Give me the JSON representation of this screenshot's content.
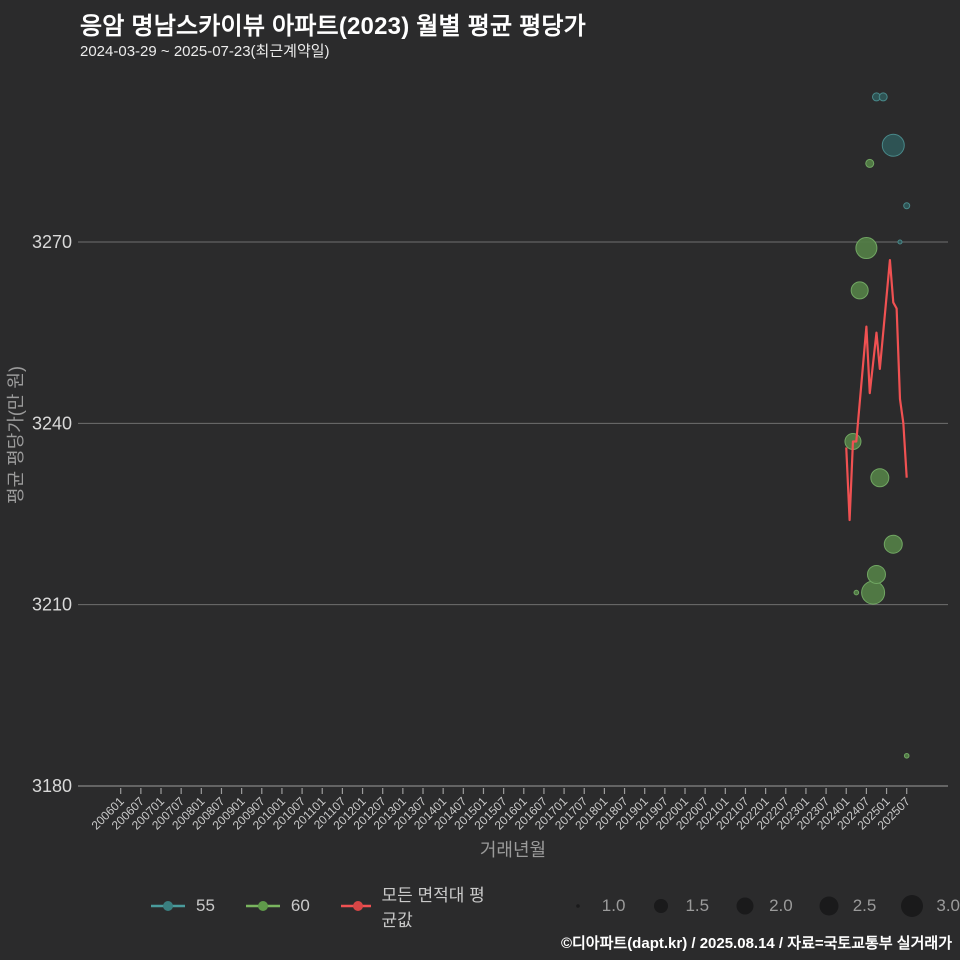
{
  "title": "응암 명남스카이뷰 아파트(2023) 월별 평균 평당가",
  "subtitle": "2024-03-29 ~ 2025-07-23(최근계약일)",
  "footer": "©디아파트(dapt.kr) / 2025.08.14 / 자료=국토교통부 실거래가",
  "colors": {
    "background": "#2b2b2c",
    "grid": "#6f6f6f",
    "axis": "#9c9c9c",
    "y_tick_text": "#d9d9d9",
    "x_tick_text": "#c9c9c9",
    "axis_title": "#9b9b9b",
    "legend_text": "#c9c9c9",
    "size_circle": "#1a1a1b"
  },
  "chart_data": {
    "type": "scatter",
    "title": "응암 명남스카이뷰 아파트(2023) 월별 평균 평당가",
    "subtitle": "2024-03-29 ~ 2025-07-23(최근계약일)",
    "xlabel": "거래년월",
    "ylabel": "평균 평당가(만 원)",
    "ylim": [
      3178,
      3298
    ],
    "grid": true,
    "legend_position": "bottom",
    "y_ticks": [
      3270,
      3240,
      3210,
      3180
    ],
    "x_tick_labels": [
      "200601",
      "200607",
      "200701",
      "200707",
      "200801",
      "200807",
      "200901",
      "200907",
      "201001",
      "201007",
      "201101",
      "201107",
      "201201",
      "201207",
      "201301",
      "201307",
      "201401",
      "201407",
      "201501",
      "201507",
      "201601",
      "201607",
      "201701",
      "201707",
      "201801",
      "201807",
      "201901",
      "201907",
      "202001",
      "202007",
      "202101",
      "202107",
      "202201",
      "202207",
      "202301",
      "202307",
      "202401",
      "202407",
      "202501",
      "202507"
    ],
    "series": [
      {
        "name": "55",
        "legend_color": "#4a9b9c",
        "fill": "#2e5556",
        "stroke": "#49898a",
        "points": [
          {
            "ym": "202410",
            "value": 3294,
            "r": 4
          },
          {
            "ym": "202412",
            "value": 3294,
            "r": 4
          },
          {
            "ym": "202503",
            "value": 3286,
            "r": 11
          },
          {
            "ym": "202505",
            "value": 3270,
            "r": 2
          },
          {
            "ym": "202507",
            "value": 3276,
            "r": 3
          }
        ]
      },
      {
        "name": "60",
        "legend_color": "#6fae54",
        "fill": "#527c46",
        "stroke": "#71a763",
        "points": [
          {
            "ym": "202403",
            "value": 3237,
            "r": 8
          },
          {
            "ym": "202404",
            "value": 3212,
            "r": 2.3
          },
          {
            "ym": "202405",
            "value": 3262,
            "r": 8.5
          },
          {
            "ym": "202407",
            "value": 3269,
            "r": 10.5
          },
          {
            "ym": "202408",
            "value": 3283,
            "r": 4
          },
          {
            "ym": "202409",
            "value": 3212,
            "r": 11.5
          },
          {
            "ym": "202410",
            "value": 3215,
            "r": 9
          },
          {
            "ym": "202411",
            "value": 3231,
            "r": 9
          },
          {
            "ym": "202503",
            "value": 3220,
            "r": 9
          },
          {
            "ym": "202507",
            "value": 3185,
            "r": 2.3
          }
        ]
      }
    ],
    "avg_line": {
      "name": "모든 면적대 평균값",
      "color": "#f05152",
      "points": [
        {
          "ym": "202401",
          "value": 3236
        },
        {
          "ym": "202402",
          "value": 3224
        },
        {
          "ym": "202403",
          "value": 3237
        },
        {
          "ym": "202404",
          "value": 3237
        },
        {
          "ym": "202407",
          "value": 3256
        },
        {
          "ym": "202408",
          "value": 3245
        },
        {
          "ym": "202410",
          "value": 3255
        },
        {
          "ym": "202411",
          "value": 3249
        },
        {
          "ym": "202502",
          "value": 3267
        },
        {
          "ym": "202503",
          "value": 3260
        },
        {
          "ym": "202504",
          "value": 3259
        },
        {
          "ym": "202505",
          "value": 3244
        },
        {
          "ym": "202506",
          "value": 3240
        },
        {
          "ym": "202507",
          "value": 3231
        }
      ]
    },
    "size_legend": {
      "labels": [
        "1.0",
        "1.5",
        "2.0",
        "2.5",
        "3.0"
      ],
      "radii": [
        1.8,
        7,
        8.5,
        9.5,
        11
      ]
    }
  }
}
